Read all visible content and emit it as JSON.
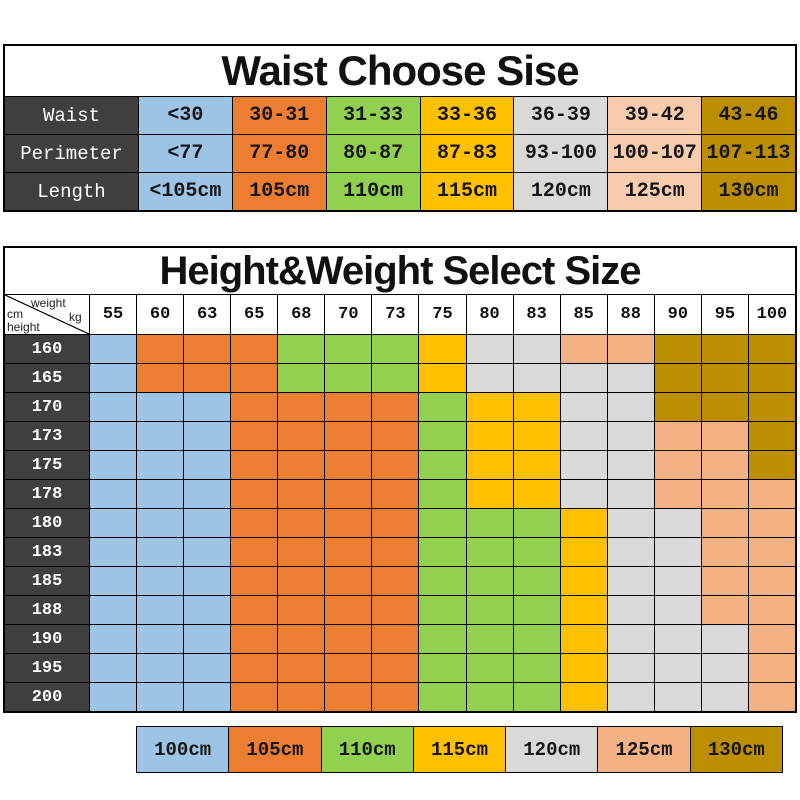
{
  "colors": {
    "blue": "#9DC3E6",
    "orange": "#ED7D31",
    "green": "#92D050",
    "yellow": "#FFC000",
    "gray": "#D9D9D9",
    "peach_light": "#F8CBAD",
    "peach": "#F4B183",
    "olive": "#BC8E00",
    "header_dark": "#3F3F3F"
  },
  "waist_table": {
    "title": "Waist Choose Sise",
    "rows": [
      {
        "label": "Waist",
        "cells": [
          {
            "text": "<30",
            "color": "blue"
          },
          {
            "text": "30-31",
            "color": "orange"
          },
          {
            "text": "31-33",
            "color": "green"
          },
          {
            "text": "33-36",
            "color": "yellow"
          },
          {
            "text": "36-39",
            "color": "gray"
          },
          {
            "text": "39-42",
            "color": "peach_light"
          },
          {
            "text": "43-46",
            "color": "olive"
          }
        ]
      },
      {
        "label": "Perimeter",
        "cells": [
          {
            "text": "<77",
            "color": "blue"
          },
          {
            "text": "77-80",
            "color": "orange"
          },
          {
            "text": "80-87",
            "color": "green"
          },
          {
            "text": "87-83",
            "color": "yellow"
          },
          {
            "text": "93-100",
            "color": "gray"
          },
          {
            "text": "100-107",
            "color": "peach_light"
          },
          {
            "text": "107-113",
            "color": "olive"
          }
        ]
      },
      {
        "label": "Length",
        "cells": [
          {
            "text": "<105cm",
            "color": "blue"
          },
          {
            "text": "105cm",
            "color": "orange"
          },
          {
            "text": "110cm",
            "color": "green"
          },
          {
            "text": "115cm",
            "color": "yellow"
          },
          {
            "text": "120cm",
            "color": "gray"
          },
          {
            "text": "125cm",
            "color": "peach_light"
          },
          {
            "text": "130cm",
            "color": "olive"
          }
        ]
      }
    ]
  },
  "size_table": {
    "title": "Height&Weight Select Size",
    "corner": {
      "weight": "weight",
      "kg": "kg",
      "cm": "cm",
      "height": "height"
    },
    "weights": [
      "55",
      "60",
      "63",
      "65",
      "68",
      "70",
      "73",
      "75",
      "80",
      "83",
      "85",
      "88",
      "90",
      "95",
      "100"
    ],
    "rows": [
      {
        "height": "160",
        "cells": [
          "blue",
          "orange",
          "orange",
          "orange",
          "green",
          "green",
          "green",
          "yellow",
          "gray",
          "gray",
          "peach",
          "peach",
          "olive",
          "olive",
          "olive"
        ]
      },
      {
        "height": "165",
        "cells": [
          "blue",
          "orange",
          "orange",
          "orange",
          "green",
          "green",
          "green",
          "yellow",
          "gray",
          "gray",
          "gray",
          "gray",
          "olive",
          "olive",
          "olive"
        ]
      },
      {
        "height": "170",
        "cells": [
          "blue",
          "blue",
          "blue",
          "orange",
          "orange",
          "orange",
          "orange",
          "green",
          "yellow",
          "yellow",
          "gray",
          "gray",
          "olive",
          "olive",
          "olive"
        ]
      },
      {
        "height": "173",
        "cells": [
          "blue",
          "blue",
          "blue",
          "orange",
          "orange",
          "orange",
          "orange",
          "green",
          "yellow",
          "yellow",
          "gray",
          "gray",
          "peach",
          "peach",
          "olive"
        ]
      },
      {
        "height": "175",
        "cells": [
          "blue",
          "blue",
          "blue",
          "orange",
          "orange",
          "orange",
          "orange",
          "green",
          "yellow",
          "yellow",
          "gray",
          "gray",
          "peach",
          "peach",
          "olive"
        ]
      },
      {
        "height": "178",
        "cells": [
          "blue",
          "blue",
          "blue",
          "orange",
          "orange",
          "orange",
          "orange",
          "green",
          "yellow",
          "yellow",
          "gray",
          "gray",
          "peach",
          "peach",
          "peach"
        ]
      },
      {
        "height": "180",
        "cells": [
          "blue",
          "blue",
          "blue",
          "orange",
          "orange",
          "orange",
          "orange",
          "green",
          "green",
          "green",
          "yellow",
          "gray",
          "gray",
          "peach",
          "peach"
        ]
      },
      {
        "height": "183",
        "cells": [
          "blue",
          "blue",
          "blue",
          "orange",
          "orange",
          "orange",
          "orange",
          "green",
          "green",
          "green",
          "yellow",
          "gray",
          "gray",
          "peach",
          "peach"
        ]
      },
      {
        "height": "185",
        "cells": [
          "blue",
          "blue",
          "blue",
          "orange",
          "orange",
          "orange",
          "orange",
          "green",
          "green",
          "green",
          "yellow",
          "gray",
          "gray",
          "peach",
          "peach"
        ]
      },
      {
        "height": "188",
        "cells": [
          "blue",
          "blue",
          "blue",
          "orange",
          "orange",
          "orange",
          "orange",
          "green",
          "green",
          "green",
          "yellow",
          "gray",
          "gray",
          "peach",
          "peach"
        ]
      },
      {
        "height": "190",
        "cells": [
          "blue",
          "blue",
          "blue",
          "orange",
          "orange",
          "orange",
          "orange",
          "green",
          "green",
          "green",
          "yellow",
          "gray",
          "gray",
          "gray",
          "peach"
        ]
      },
      {
        "height": "195",
        "cells": [
          "blue",
          "blue",
          "blue",
          "orange",
          "orange",
          "orange",
          "orange",
          "green",
          "green",
          "green",
          "yellow",
          "gray",
          "gray",
          "gray",
          "peach"
        ]
      },
      {
        "height": "200",
        "cells": [
          "blue",
          "blue",
          "blue",
          "orange",
          "orange",
          "orange",
          "orange",
          "green",
          "green",
          "green",
          "yellow",
          "gray",
          "gray",
          "gray",
          "peach"
        ]
      }
    ],
    "legend": [
      {
        "label": "100cm",
        "color": "blue"
      },
      {
        "label": "105cm",
        "color": "orange"
      },
      {
        "label": "110cm",
        "color": "green"
      },
      {
        "label": "115cm",
        "color": "yellow"
      },
      {
        "label": "120cm",
        "color": "gray"
      },
      {
        "label": "125cm",
        "color": "peach"
      },
      {
        "label": "130cm",
        "color": "olive"
      }
    ]
  }
}
